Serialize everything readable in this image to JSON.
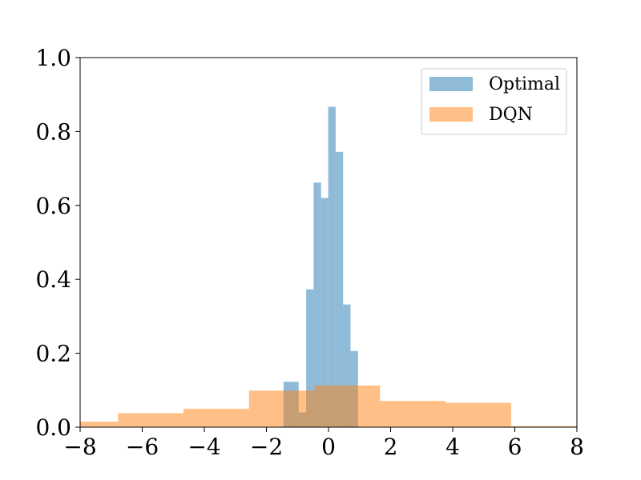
{
  "chart_data": {
    "type": "histogram",
    "title": "",
    "xlabel": "",
    "ylabel": "",
    "xlim": [
      -8,
      8
    ],
    "ylim": [
      0,
      1.0
    ],
    "xticks": [
      -8,
      -6,
      -4,
      -2,
      0,
      2,
      4,
      6,
      8
    ],
    "xtick_labels": [
      "−8",
      "−6",
      "−4",
      "−2",
      "0",
      "2",
      "4",
      "6",
      "8"
    ],
    "yticks": [
      0.0,
      0.2,
      0.4,
      0.6,
      0.8,
      1.0
    ],
    "ytick_labels": [
      "0.0",
      "0.2",
      "0.4",
      "0.6",
      "0.8",
      "1.0"
    ],
    "grid": false,
    "legend_position": "top-right",
    "series": [
      {
        "name": "Optimal",
        "color": "#1f77b4",
        "opacity": 0.5,
        "bins": [
          {
            "x0": -1.45,
            "x1": -0.96,
            "y": 0.123
          },
          {
            "x0": -0.96,
            "x1": -0.72,
            "y": 0.04
          },
          {
            "x0": -0.72,
            "x1": -0.48,
            "y": 0.373
          },
          {
            "x0": -0.48,
            "x1": -0.24,
            "y": 0.662
          },
          {
            "x0": -0.24,
            "x1": -0.01,
            "y": 0.62
          },
          {
            "x0": -0.01,
            "x1": 0.23,
            "y": 0.867
          },
          {
            "x0": 0.23,
            "x1": 0.47,
            "y": 0.745
          },
          {
            "x0": 0.47,
            "x1": 0.71,
            "y": 0.332
          },
          {
            "x0": 0.71,
            "x1": 0.95,
            "y": 0.206
          }
        ]
      },
      {
        "name": "DQN",
        "color": "#ff7f0e",
        "opacity": 0.5,
        "bins": [
          {
            "x0": -8.0,
            "x1": -6.78,
            "y": 0.015
          },
          {
            "x0": -6.78,
            "x1": -4.67,
            "y": 0.038
          },
          {
            "x0": -4.67,
            "x1": -2.56,
            "y": 0.05
          },
          {
            "x0": -2.56,
            "x1": -0.45,
            "y": 0.099
          },
          {
            "x0": -0.45,
            "x1": 1.66,
            "y": 0.113
          },
          {
            "x0": 1.66,
            "x1": 3.77,
            "y": 0.071
          },
          {
            "x0": 3.77,
            "x1": 5.88,
            "y": 0.066
          },
          {
            "x0": 5.88,
            "x1": 8.0,
            "y": 0.003
          }
        ]
      }
    ]
  }
}
